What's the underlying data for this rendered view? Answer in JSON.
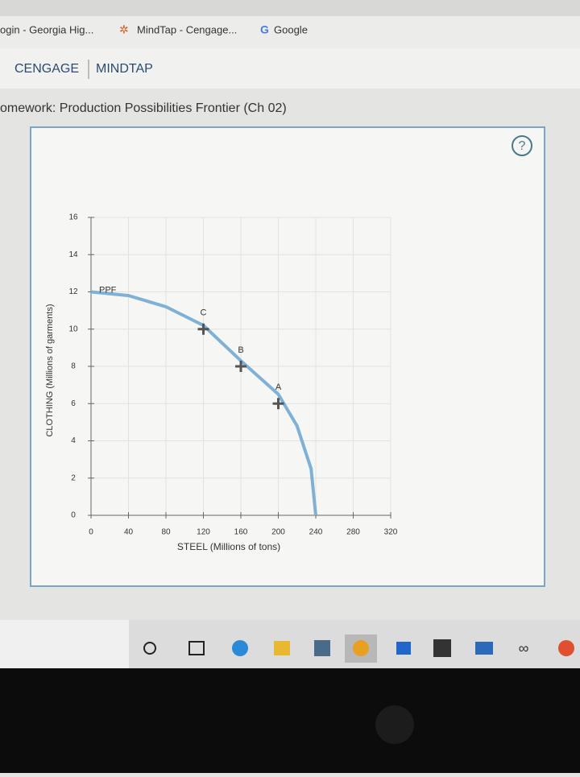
{
  "browser": {
    "bookmarks": [
      "ogin - Georgia Hig...",
      "MindTap - Cengage...",
      "Google"
    ]
  },
  "header": {
    "brand": "CENGAGE",
    "product": "MINDTAP"
  },
  "page": {
    "title": "omework: Production Possibilities Frontier (Ch 02)",
    "help": "?"
  },
  "chart_data": {
    "type": "line",
    "xlabel": "STEEL (Millions of tons)",
    "ylabel": "CLOTHING (Millions of garments)",
    "xlim": [
      0,
      320
    ],
    "ylim": [
      0,
      16
    ],
    "xticks": [
      0,
      40,
      80,
      120,
      160,
      200,
      240,
      280,
      320
    ],
    "yticks": [
      0,
      2,
      4,
      6,
      8,
      10,
      12,
      14,
      16
    ],
    "grid": true,
    "series": [
      {
        "name": "PPF",
        "color": "#7fb0d6",
        "x": [
          0,
          40,
          80,
          120,
          160,
          200,
          220,
          235,
          240
        ],
        "values": [
          12,
          11.8,
          11.2,
          10.2,
          8.3,
          6.5,
          4.8,
          2.5,
          0
        ]
      }
    ],
    "points": [
      {
        "label": "A",
        "x": 200,
        "y": 6
      },
      {
        "label": "B",
        "x": 160,
        "y": 8
      },
      {
        "label": "C",
        "x": 120,
        "y": 10
      }
    ],
    "point_color": "#555555"
  }
}
